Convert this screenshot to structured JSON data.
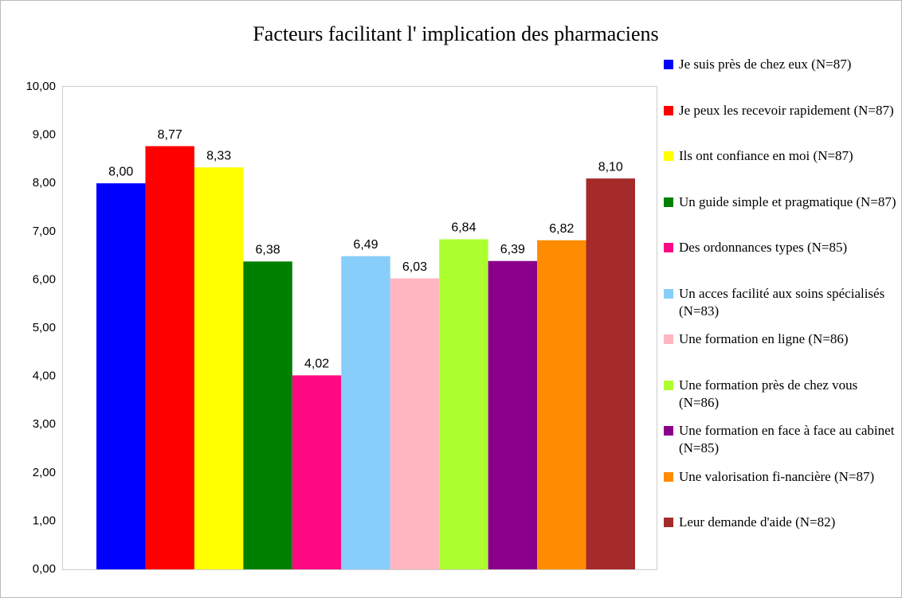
{
  "chart_data": {
    "type": "bar",
    "title": "Facteurs facilitant l' implication des pharmaciens",
    "series": [
      {
        "name": "Je suis près de chez eux (N=87)",
        "color": "#0000ff",
        "values": [
          8.0
        ],
        "value_labels": [
          "8,00"
        ]
      },
      {
        "name": "Je peux les recevoir rapidement (N=87)",
        "color": "#ff0000",
        "values": [
          8.77
        ],
        "value_labels": [
          "8,77"
        ]
      },
      {
        "name": "Ils ont confiance en moi (N=87)",
        "color": "#ffff00",
        "values": [
          8.33
        ],
        "value_labels": [
          "8,33"
        ]
      },
      {
        "name": "Un guide simple et pragmatique (N=87)",
        "color": "#008000",
        "values": [
          6.38
        ],
        "value_labels": [
          "6,38"
        ]
      },
      {
        "name": "Des ordonnances types (N=85)",
        "color": "#ff0a84",
        "values": [
          4.02
        ],
        "value_labels": [
          "4,02"
        ]
      },
      {
        "name": "Un acces facilité aux soins spécialisés (N=83)",
        "color": "#87cefa",
        "values": [
          6.49
        ],
        "value_labels": [
          "6,49"
        ]
      },
      {
        "name": "Une formation en ligne (N=86)",
        "color": "#ffb6c1",
        "values": [
          6.03
        ],
        "value_labels": [
          "6,03"
        ]
      },
      {
        "name": "Une formation près de chez vous (N=86)",
        "color": "#adff2f",
        "values": [
          6.84
        ],
        "value_labels": [
          "6,84"
        ]
      },
      {
        "name": "Une formation en face à face au cabinet (N=85)",
        "color": "#8b008b",
        "values": [
          6.39
        ],
        "value_labels": [
          "6,39"
        ]
      },
      {
        "name": "Une valorisation fi-nancière (N=87)",
        "color": "#ff8c00",
        "values": [
          6.82
        ],
        "value_labels": [
          "6,82"
        ]
      },
      {
        "name": "Leur demande d'aide (N=82)",
        "color": "#a52a2a",
        "values": [
          8.1
        ],
        "value_labels": [
          "8,10"
        ]
      }
    ],
    "ylim": [
      0,
      10
    ],
    "yticks": [
      {
        "value": 0,
        "label": "0,00"
      },
      {
        "value": 1,
        "label": "1,00"
      },
      {
        "value": 2,
        "label": "2,00"
      },
      {
        "value": 3,
        "label": "3,00"
      },
      {
        "value": 4,
        "label": "4,00"
      },
      {
        "value": 5,
        "label": "5,00"
      },
      {
        "value": 6,
        "label": "6,00"
      },
      {
        "value": 7,
        "label": "7,00"
      },
      {
        "value": 8,
        "label": "8,00"
      },
      {
        "value": 9,
        "label": "9,00"
      },
      {
        "value": 10,
        "label": "10,00"
      }
    ],
    "grid": false,
    "legend": "right"
  }
}
